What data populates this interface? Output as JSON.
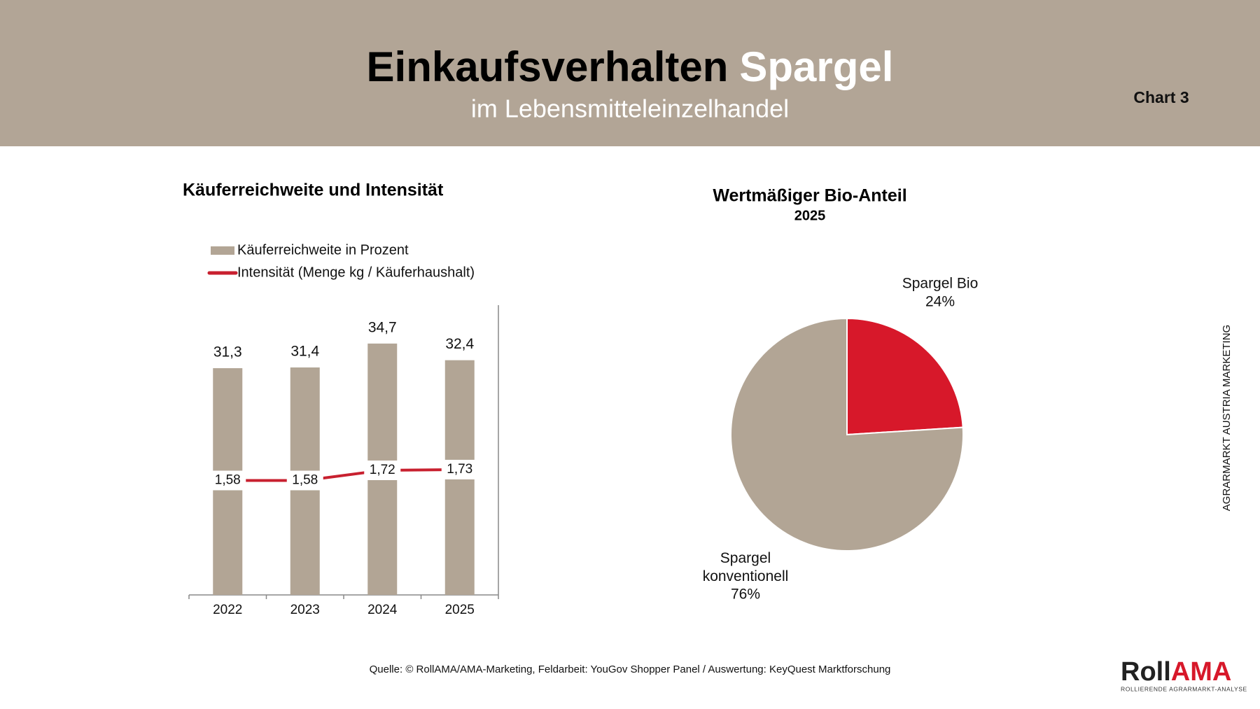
{
  "header": {
    "title_parts": [
      "Einkaufsverhalten",
      "Spargel"
    ],
    "subtitle": "im Lebensmitteleinzelhandel",
    "chart_label": "Chart 3"
  },
  "chart_data": [
    {
      "type": "combo",
      "title": "Käuferreichweite und Intensität",
      "categories": [
        "2022",
        "2023",
        "2024",
        "2025"
      ],
      "series": [
        {
          "name": "Käuferreichweite in Prozent",
          "kind": "bar",
          "color": "#b2a595",
          "values": [
            31.3,
            31.4,
            34.7,
            32.4
          ],
          "value_labels": [
            "31,3",
            "31,4",
            "34,7",
            "32,4"
          ]
        },
        {
          "name": "Intensität (Menge kg / Käuferhaushalt)",
          "kind": "line",
          "axis": "y2",
          "color": "#c8202f",
          "values": [
            1.58,
            1.58,
            1.72,
            1.73
          ],
          "value_labels": [
            "1,58",
            "1,58",
            "1,72",
            "1,73"
          ]
        }
      ],
      "ylim": [
        0,
        40
      ],
      "y2lim": [
        0,
        4
      ]
    },
    {
      "type": "pie",
      "title": "Wertmäßiger Bio-Anteil",
      "subtitle": "2025",
      "categories": [
        "Spargel Bio",
        "Spargel konventionell"
      ],
      "values": [
        24,
        76
      ],
      "value_labels": [
        "24%",
        "76%"
      ],
      "colors": [
        "#d7182a",
        "#b2a595"
      ]
    }
  ],
  "side_text": "AGRARMARKT AUSTRIA MARKETING",
  "source": "Quelle: © RollAMA/AMA-Marketing, Feldarbeit: YouGov Shopper Panel / Auswertung: KeyQuest Marktforschung",
  "logo": {
    "parts": [
      "Roll",
      "AMA"
    ],
    "tagline": "ROLLIERENDE AGRARMARKT-ANALYSE"
  }
}
